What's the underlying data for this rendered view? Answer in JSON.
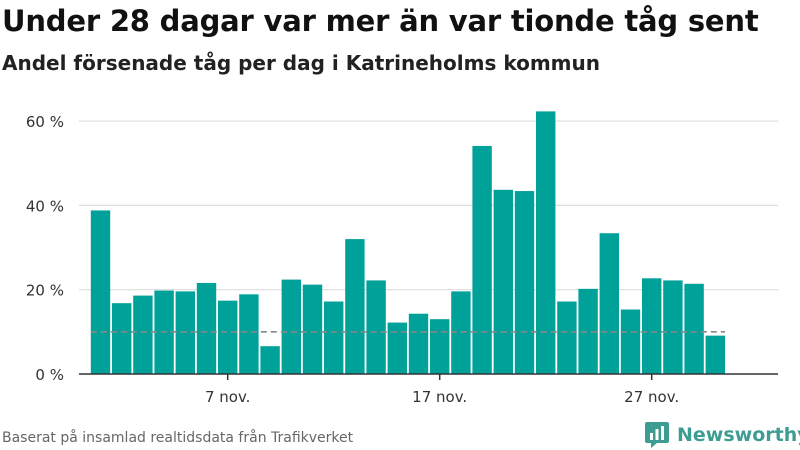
{
  "header": {
    "title": "Under 28 dagar var mer än var tionde tåg sent",
    "subtitle": "Andel försenade tåg per dag i Katrineholms kommun"
  },
  "footer": {
    "source": "Baserat på insamlad realtidsdata från Trafikverket",
    "logo_text": "Newsworthy",
    "logo_icon": "bar-chart-icon"
  },
  "colors": {
    "bar": "#00a198",
    "grid": "#dddddd",
    "axis": "#333333",
    "reference": "#888888",
    "logo": "#3e9d92"
  },
  "chart_data": {
    "type": "bar",
    "title": "Under 28 dagar var mer än var tionde tåg sent",
    "subtitle": "Andel försenade tåg per dag i Katrineholms kommun",
    "xlabel": "",
    "ylabel": "",
    "x": [
      "1 nov.",
      "2 nov.",
      "3 nov.",
      "4 nov.",
      "5 nov.",
      "6 nov.",
      "7 nov.",
      "8 nov.",
      "9 nov.",
      "10 nov.",
      "11 nov.",
      "12 nov.",
      "13 nov.",
      "14 nov.",
      "15 nov.",
      "16 nov.",
      "17 nov.",
      "18 nov.",
      "19 nov.",
      "20 nov.",
      "21 nov.",
      "22 nov.",
      "23 nov.",
      "24 nov.",
      "25 nov.",
      "26 nov.",
      "27 nov.",
      "28 nov.",
      "29 nov.",
      "30 nov."
    ],
    "values": [
      38.8,
      16.8,
      18.6,
      19.8,
      19.6,
      21.6,
      17.4,
      18.9,
      6.6,
      22.4,
      21.2,
      17.2,
      32.0,
      22.2,
      12.2,
      14.3,
      13.0,
      19.6,
      54.1,
      43.7,
      43.4,
      62.3,
      17.2,
      20.2,
      33.4,
      15.3,
      22.7,
      22.2,
      21.4,
      9.1
    ],
    "unit": "%",
    "ylim": [
      0,
      65
    ],
    "yticks": [
      0,
      20,
      40,
      60
    ],
    "ytick_labels": [
      "0 %",
      "20 %",
      "40 %",
      "60 %"
    ],
    "xticks": [
      "7 nov.",
      "17 nov.",
      "27 nov."
    ],
    "reference_line": {
      "value": 10,
      "style": "dashed"
    },
    "grid": true,
    "legend": "none"
  }
}
